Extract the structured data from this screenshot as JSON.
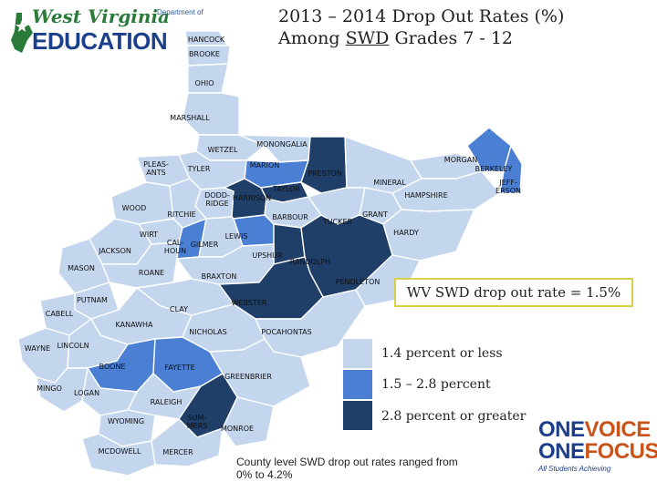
{
  "title_line1": "2013 – 2014 Drop Out Rates (%)",
  "title_line2_pre": "Among ",
  "title_line2_u": "SWD",
  "title_line2_post": " Grades 7 - 12",
  "logo": {
    "line1": "West Virginia",
    "dept": "Department of",
    "line2": "EDUCATION"
  },
  "statewide_rate": "WV SWD drop out rate = 1.5%",
  "legend": [
    {
      "label": "1.4 percent or less",
      "color": "#c3d6ee"
    },
    {
      "label": "1.5 – 2.8 percent",
      "color": "#4a7fd4"
    },
    {
      "label": "2.8 percent or greater",
      "color": "#1f3e68"
    }
  ],
  "note": "County level SWD drop out rates ranged from 0% to 4.2%",
  "brand": {
    "one1": "ONE",
    "voice": "VOICE",
    "one2": "ONE",
    "focus": "FOCUS",
    "tagline": "All Students Achieving"
  },
  "counties": {
    "hancock": "HANCOCK",
    "brooke": "BROOKE",
    "ohio": "OHIO",
    "marshall": "MARSHALL",
    "wetzel": "WETZEL",
    "monongalia": "MONONGALIA",
    "marion": "MARION",
    "tyler": "TYLER",
    "pleasants": "PLEAS-\nANTS",
    "preston": "PRESTON",
    "morgan": "MORGAN",
    "berkeley": "BERKELEY",
    "jefferson": "JEFF-\nERSON",
    "mineral": "MINERAL",
    "hampshire": "HAMPSHIRE",
    "taylor": "TAYLOR",
    "doddridge": "DODD-\nRIDGE",
    "harrison": "HARRISON",
    "wood": "WOOD",
    "ritchie": "RITCHIE",
    "barbour": "BARBOUR",
    "tucker": "TUCKER",
    "grant": "GRANT",
    "hardy": "HARDY",
    "wirt": "WIRT",
    "calhoun": "CAL-\nHOUN",
    "gilmer": "GILMER",
    "lewis": "LEWIS",
    "jackson": "JACKSON",
    "upshur": "UPSHUR",
    "randolph": "RANDOLPH",
    "mason": "MASON",
    "roane": "ROANE",
    "braxton": "BRAXTON",
    "pendleton": "PENDLETON",
    "putnam": "PUTNAM",
    "webster": "WEBSTER",
    "cabell": "CABELL",
    "clay": "CLAY",
    "kanawha": "KANAWHA",
    "nicholas": "NICHOLAS",
    "pocahontas": "POCAHONTAS",
    "wayne": "WAYNE",
    "lincoln": "LINCOLN",
    "boone": "BOONE",
    "fayette": "FAYETTE",
    "greenbrier": "GREENBRIER",
    "mingo": "MINGO",
    "logan": "LOGAN",
    "raleigh": "RALEIGH",
    "wyoming": "WYOMING",
    "summers": "SUM-\nMERS",
    "monroe": "MONROE",
    "mcdowell": "MCDOWELL",
    "mercer": "MERCER"
  }
}
